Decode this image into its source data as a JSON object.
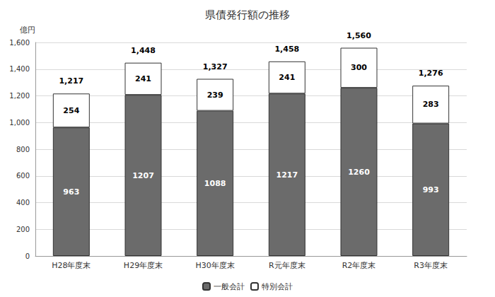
{
  "chart_data": {
    "type": "bar",
    "title": "県債発行額の推移",
    "y_label": "億円",
    "categories": [
      "H28年度末",
      "H29年度末",
      "H30年度末",
      "R元年度末",
      "R2年度末",
      "R3年度末"
    ],
    "series": [
      {
        "name": "一般会計",
        "color": "#6b6b6b",
        "values": [
          963,
          1207,
          1088,
          1217,
          1260,
          993
        ]
      },
      {
        "name": "特別会計",
        "color": "#ffffff",
        "values": [
          254,
          241,
          239,
          241,
          300,
          283
        ]
      }
    ],
    "totals": [
      1217,
      1448,
      1327,
      1458,
      1560,
      1276
    ],
    "total_labels": [
      "1,217",
      "1,448",
      "1,327",
      "1,458",
      "1,560",
      "1,276"
    ],
    "ylim": [
      0,
      1600
    ],
    "yticks": [
      0,
      200,
      400,
      600,
      800,
      {
        "value": 1000,
        "label": "1,000"
      },
      {
        "value": 1200,
        "label": "1,200"
      },
      {
        "value": 1400,
        "label": "1,400"
      },
      {
        "value": 1600,
        "label": "1,600"
      }
    ],
    "stacked": true,
    "data_labels": true,
    "grid": true,
    "legend": "bottom"
  }
}
